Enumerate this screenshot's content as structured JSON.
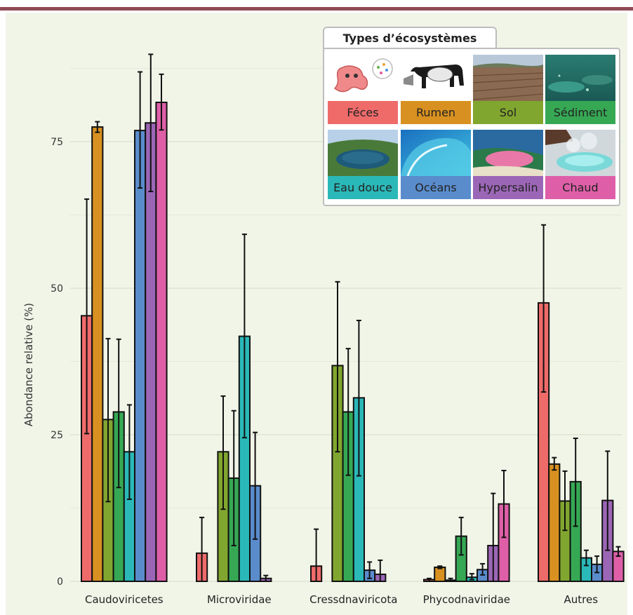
{
  "chart_data": {
    "type": "bar",
    "title": "",
    "xlabel": "",
    "ylabel": "Abondance relative (%)",
    "ylim": [
      0,
      92
    ],
    "yticks": [
      0,
      25,
      50,
      75
    ],
    "grid": true,
    "legend_position": "top-right",
    "legend_title": "Types d’écosystèmes",
    "categories": [
      "Caudoviricetes",
      "Microviridae",
      "Cressdnaviricota",
      "Phycodnaviridae",
      "Autres"
    ],
    "series": [
      {
        "name": "Féces",
        "color": "#ee6b6a",
        "icon": "intestine-icon",
        "values": [
          45.3,
          4.8,
          2.6,
          0.3,
          47.5
        ],
        "errors": [
          [
            25.2,
            65.2
          ],
          [
            0,
            10.9
          ],
          [
            0,
            8.9
          ],
          [
            0,
            0.5
          ],
          [
            32.3,
            60.8
          ]
        ]
      },
      {
        "name": "Rumen",
        "color": "#d89120",
        "icon": "cow-icon",
        "values": [
          77.5,
          0,
          0,
          2.4,
          20.0
        ],
        "errors": [
          [
            76.6,
            78.4
          ],
          [
            0,
            0
          ],
          [
            0,
            0
          ],
          [
            2.2,
            2.6
          ],
          [
            19.0,
            21.1
          ]
        ]
      },
      {
        "name": "Sol",
        "color": "#81a62f",
        "icon": "soil-field-icon",
        "values": [
          27.6,
          22.1,
          36.8,
          0.2,
          13.7
        ],
        "errors": [
          [
            13.6,
            41.4
          ],
          [
            12.3,
            31.6
          ],
          [
            22.1,
            51.1
          ],
          [
            0,
            0.5
          ],
          [
            8.7,
            18.8
          ]
        ]
      },
      {
        "name": "Sédiment",
        "color": "#36a854",
        "icon": "seabed-icon",
        "values": [
          28.9,
          17.6,
          28.9,
          7.7,
          17.0
        ],
        "errors": [
          [
            16.0,
            41.3
          ],
          [
            6.1,
            29.1
          ],
          [
            18.1,
            39.7
          ],
          [
            4.5,
            10.9
          ],
          [
            9.4,
            24.4
          ]
        ]
      },
      {
        "name": "Eau douce",
        "color": "#2bb8b8",
        "icon": "lake-icon",
        "values": [
          22.1,
          41.8,
          31.3,
          0.7,
          4.0
        ],
        "errors": [
          [
            14.0,
            30.1
          ],
          [
            24.5,
            59.2
          ],
          [
            18.0,
            44.5
          ],
          [
            0.3,
            1.3
          ],
          [
            2.7,
            5.3
          ]
        ]
      },
      {
        "name": "Océans",
        "color": "#5a8ccc",
        "icon": "wave-icon",
        "values": [
          76.9,
          16.3,
          1.9,
          2.0,
          2.9
        ],
        "errors": [
          [
            67.1,
            86.9
          ],
          [
            7.2,
            25.4
          ],
          [
            0.5,
            3.3
          ],
          [
            1.1,
            3.0
          ],
          [
            1.5,
            4.3
          ]
        ]
      },
      {
        "name": "Hypersalin",
        "color": "#9c66b6",
        "icon": "pink-lake-icon",
        "values": [
          78.2,
          0.5,
          1.2,
          6.1,
          13.8
        ],
        "errors": [
          [
            66.5,
            89.9
          ],
          [
            0,
            1.0
          ],
          [
            0,
            3.6
          ],
          [
            0,
            15.0
          ],
          [
            5.3,
            22.2
          ]
        ]
      },
      {
        "name": "Chaud",
        "color": "#de5fa8",
        "icon": "hot-spring-icon",
        "values": [
          81.7,
          0,
          0,
          13.2,
          5.1
        ],
        "errors": [
          [
            77.0,
            86.5
          ],
          [
            0,
            0
          ],
          [
            0,
            0
          ],
          [
            7.5,
            18.9
          ],
          [
            4.3,
            5.9
          ]
        ]
      }
    ]
  }
}
